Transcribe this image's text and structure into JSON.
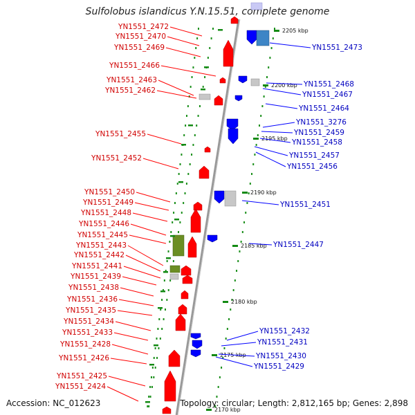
{
  "title": "Sulfolobus islandicus Y.N.15.51, complete genome",
  "footer": {
    "accession": "Accession: NC_012623",
    "summary": "Topology: circular; Length: 2,812,165 bp; Genes: 2,898"
  },
  "colors": {
    "forward": "#ff0000",
    "reverse": "#0000ff",
    "backbone": "#999999",
    "tick": "#0a8a0a",
    "rna": "#6b8e23"
  },
  "scale_ticks": [
    "2205 kbp",
    "2200 kbp",
    "2195 kbp",
    "2190 kbp",
    "2185 kbp",
    "2180 kbp",
    "2175 kbp",
    "2170 kbp"
  ],
  "left_labels": [
    "YN1551_2472",
    "YN1551_2470",
    "YN1551_2469",
    "YN1551_2466",
    "YN1551_2463",
    "YN1551_2462",
    "YN1551_2455",
    "YN1551_2452",
    "YN1551_2450",
    "YN1551_2449",
    "YN1551_2448",
    "YN1551_2446",
    "YN1551_2445",
    "YN1551_2443",
    "YN1551_2442",
    "YN1551_2441",
    "YN1551_2439",
    "YN1551_2438",
    "YN1551_2436",
    "YN1551_2435",
    "YN1551_2434",
    "YN1551_2433",
    "YN1551_2428",
    "YN1551_2426",
    "YN1551_2425",
    "YN1551_2424"
  ],
  "right_labels": [
    "YN1551_2473",
    "YN1551_2468",
    "YN1551_2467",
    "YN1551_2464",
    "YN1551_3276",
    "YN1551_2459",
    "YN1551_2458",
    "YN1551_2457",
    "YN1551_2456",
    "YN1551_2451",
    "YN1551_2447",
    "YN1551_2432",
    "YN1551_2431",
    "YN1551_2430",
    "YN1551_2429"
  ]
}
